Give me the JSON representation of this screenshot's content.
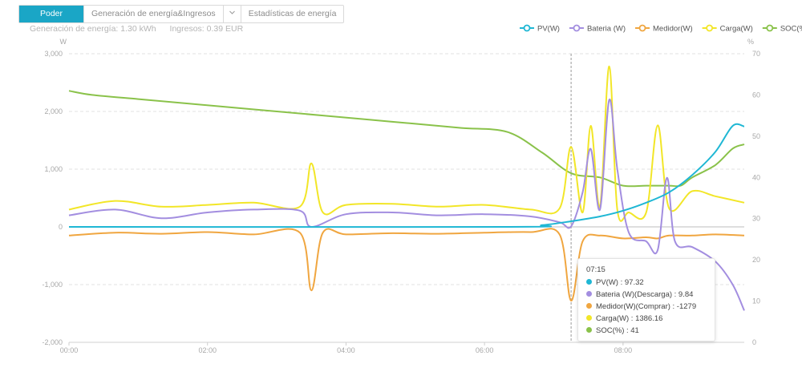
{
  "tabs": [
    {
      "label": "Poder",
      "active": true
    },
    {
      "label": "Generación de energía&Ingresos",
      "active": false
    },
    {
      "label": "Estadísticas de energía",
      "active": false
    }
  ],
  "summary": {
    "energy": "Generación de energía:  1.30 kWh",
    "income": "Ingresos:  0.39 EUR"
  },
  "tooltip": {
    "time": "07:15",
    "rows": [
      {
        "text": "PV(W) : 97.32",
        "color": "#1fb7d4"
      },
      {
        "text": "Bateria (W)(Descarga) : 9.84",
        "color": "#a38ee0"
      },
      {
        "text": "Medidor(W)(Comprar) : -1279",
        "color": "#f0a640"
      },
      {
        "text": "Carga(W) : 1386.16",
        "color": "#f2e628"
      },
      {
        "text": "SOC(%) : 41",
        "color": "#8ac24a"
      }
    ]
  },
  "chart_data": {
    "type": "line",
    "y_left_label": "W",
    "y_right_label": "%",
    "y_left_range": [
      -2000,
      3000
    ],
    "y_right_range": [
      0,
      70
    ],
    "y_left_ticks": [
      "3,000",
      "2,000",
      "1,000",
      "0",
      "-1,000",
      "-2,000"
    ],
    "y_right_ticks": [
      "70",
      "60",
      "50",
      "40",
      "30",
      "20",
      "10",
      "0"
    ],
    "x_ticks": [
      "00:00",
      "02:00",
      "04:00",
      "06:00",
      "08:00"
    ],
    "x_range_hours": [
      0,
      9.75
    ],
    "grid": true,
    "legend_position": "top-right",
    "crosshair_time": "07:15",
    "series": [
      {
        "name": "PV(W)",
        "color": "#1fb7d4",
        "axis": "left",
        "x": [
          "00:00",
          "06:20",
          "06:50",
          "07:15",
          "07:40",
          "08:00",
          "08:20",
          "08:40",
          "09:00",
          "09:20",
          "09:35",
          "09:45"
        ],
        "y": [
          0,
          0,
          30,
          97,
          180,
          280,
          420,
          600,
          900,
          1300,
          1750,
          1740
        ]
      },
      {
        "name": "Bateria (W)",
        "color": "#a38ee0",
        "axis": "left",
        "x": [
          "00:00",
          "00:40",
          "01:20",
          "02:00",
          "02:40",
          "03:20",
          "03:30",
          "04:00",
          "04:40",
          "05:20",
          "06:00",
          "06:40",
          "07:05",
          "07:15",
          "07:25",
          "07:32",
          "07:40",
          "07:48",
          "07:55",
          "08:05",
          "08:20",
          "08:30",
          "08:38",
          "08:45",
          "09:00",
          "09:20",
          "09:35",
          "09:45"
        ],
        "y": [
          200,
          300,
          150,
          250,
          300,
          280,
          0,
          220,
          250,
          200,
          220,
          180,
          80,
          10,
          600,
          1350,
          300,
          2200,
          1000,
          -100,
          -250,
          -400,
          850,
          -250,
          -350,
          -600,
          -1000,
          -1450
        ]
      },
      {
        "name": "Medidor(W)",
        "color": "#f0a640",
        "axis": "left",
        "x": [
          "00:00",
          "00:40",
          "01:20",
          "02:00",
          "02:40",
          "03:20",
          "03:30",
          "03:40",
          "04:00",
          "04:40",
          "05:20",
          "06:00",
          "06:40",
          "07:05",
          "07:15",
          "07:25",
          "07:40",
          "08:00",
          "08:20",
          "08:30",
          "08:40",
          "09:00",
          "09:20",
          "09:45"
        ],
        "y": [
          -150,
          -100,
          -120,
          -90,
          -130,
          -100,
          -1100,
          -100,
          -130,
          -110,
          -120,
          -100,
          -90,
          -130,
          -1279,
          -250,
          -150,
          -200,
          -180,
          -200,
          -150,
          -150,
          -130,
          -150
        ]
      },
      {
        "name": "Carga(W)",
        "color": "#f2e628",
        "axis": "left",
        "x": [
          "00:00",
          "00:40",
          "01:20",
          "02:00",
          "02:40",
          "03:20",
          "03:30",
          "03:40",
          "04:00",
          "04:40",
          "05:20",
          "06:00",
          "06:40",
          "07:05",
          "07:15",
          "07:25",
          "07:32",
          "07:40",
          "07:48",
          "07:55",
          "08:05",
          "08:20",
          "08:30",
          "08:40",
          "09:00",
          "09:20",
          "09:45"
        ],
        "y": [
          300,
          450,
          350,
          380,
          420,
          350,
          1100,
          250,
          380,
          400,
          350,
          380,
          300,
          320,
          1386,
          250,
          1750,
          350,
          2780,
          300,
          250,
          250,
          1760,
          320,
          620,
          530,
          420
        ]
      },
      {
        "name": "SOC(%)",
        "color": "#8ac24a",
        "axis": "right",
        "x": [
          "00:00",
          "00:20",
          "01:00",
          "01:40",
          "02:20",
          "03:00",
          "03:40",
          "04:20",
          "05:00",
          "05:40",
          "06:20",
          "06:50",
          "07:15",
          "07:40",
          "08:00",
          "08:20",
          "08:40",
          "08:50",
          "09:00",
          "09:20",
          "09:35",
          "09:45"
        ],
        "y": [
          61,
          60,
          59,
          58,
          57,
          56,
          55,
          54,
          53,
          52,
          51,
          46,
          41,
          40,
          38,
          38,
          38,
          38,
          40,
          43,
          47,
          48
        ]
      }
    ]
  }
}
